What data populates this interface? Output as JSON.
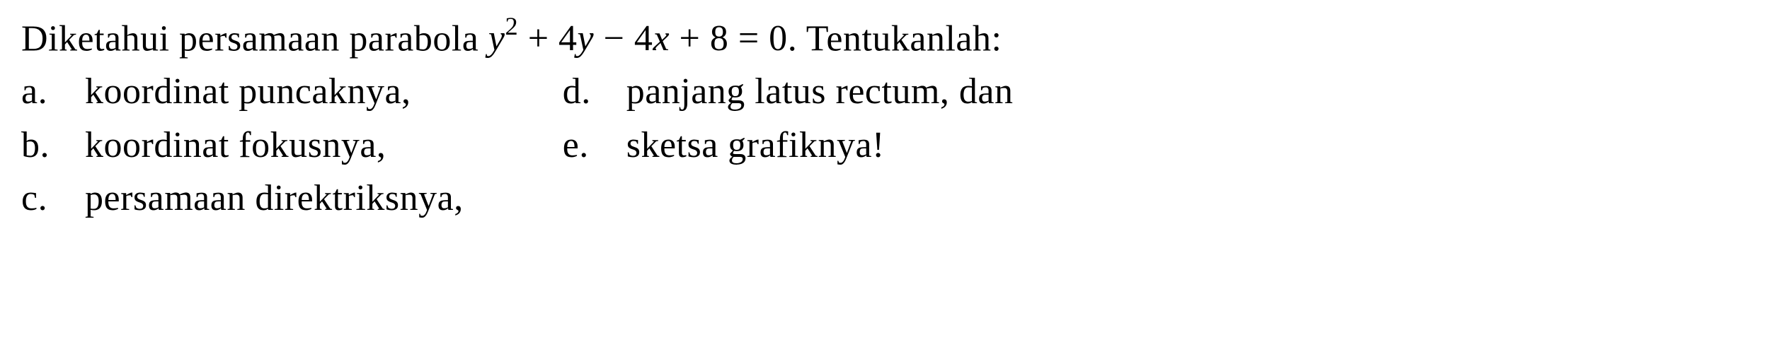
{
  "main": {
    "prefix": "Diketahui persamaan parabola ",
    "eq_y": "y",
    "eq_sup": "2",
    "eq_mid": " + 4",
    "eq_y2": "y",
    "eq_minus": " − 4",
    "eq_x": "x",
    "eq_end": " + 8 = 0",
    "suffix": ". Tentukanlah:"
  },
  "left": {
    "a_label": "a.",
    "a_text": "koordinat puncaknya,",
    "b_label": "b.",
    "b_text": "koordinat fokusnya,",
    "c_label": "c.",
    "c_text": "persamaan direktriksnya,"
  },
  "right": {
    "d_label": "d.",
    "d_text": "panjang latus rectum, dan",
    "e_label": "e.",
    "e_text": "sketsa grafiknya!"
  },
  "style": {
    "font_size_pt": 39,
    "font_family": "Times New Roman",
    "text_color": "#000000",
    "background_color": "#ffffff"
  }
}
